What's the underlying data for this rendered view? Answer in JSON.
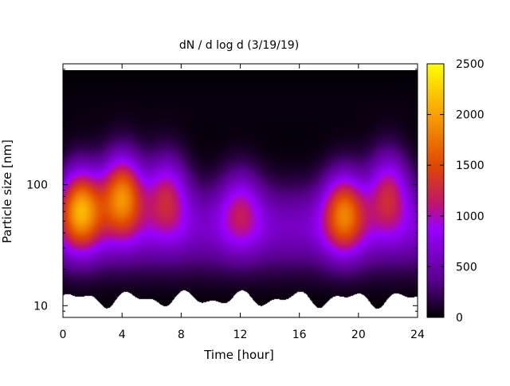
{
  "chart_data": {
    "type": "heatmap",
    "title": "dN / d log d (3/19/19)",
    "xlabel": "Time [hour]",
    "ylabel": "Particle size [nm]",
    "xlim": [
      0,
      24
    ],
    "ylim": [
      8,
      1000
    ],
    "y_scale": "log",
    "x_ticks": [
      0,
      4,
      8,
      12,
      16,
      20,
      24
    ],
    "x_tick_labels": [
      "0",
      "4",
      "8",
      "12",
      "16",
      "20",
      "24"
    ],
    "y_ticks": [
      10,
      100
    ],
    "y_tick_labels": [
      "10",
      "100"
    ],
    "colorbar": {
      "min": 0,
      "max": 2500,
      "ticks": [
        0,
        500,
        1000,
        1500,
        2000,
        2500
      ],
      "tick_labels": [
        "0",
        "500",
        "1000",
        "1500",
        "2000",
        "2500"
      ],
      "palette": [
        "#000000",
        "#5a0090",
        "#9a00ff",
        "#c0156c",
        "#e04800",
        "#f8a000",
        "#ffff00"
      ]
    },
    "size_range_nm": [
      10,
      800
    ],
    "features": [
      {
        "time_h": 1.2,
        "center_nm": 65,
        "peak_value": 2200
      },
      {
        "time_h": 4.0,
        "center_nm": 85,
        "peak_value": 2150
      },
      {
        "time_h": 7.0,
        "center_nm": 85,
        "peak_value": 1500
      },
      {
        "time_h": 12.0,
        "center_nm": 65,
        "peak_value": 1250
      },
      {
        "time_h": 19.0,
        "center_nm": 60,
        "peak_value": 1900
      },
      {
        "time_h": 22.0,
        "center_nm": 90,
        "peak_value": 1550
      }
    ],
    "grid": false,
    "legend": "none"
  }
}
